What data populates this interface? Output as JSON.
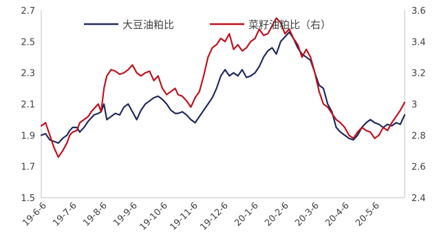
{
  "chart_data": {
    "type": "line",
    "title": "",
    "xlabel": "",
    "ylabel": "",
    "y2label": "",
    "x_tick_labels": [
      "19-6-6",
      "19-7-6",
      "19-8-6",
      "19-9-6",
      "19-10-6",
      "19-11-6",
      "19-12-6",
      "20-1-6",
      "20-2-6",
      "20-3-6",
      "20-4-6",
      "20-5-6"
    ],
    "y_left": {
      "min": 1.5,
      "max": 2.7,
      "ticks": [
        "1.5",
        "1.7",
        "1.9",
        "2.1",
        "2.3",
        "2.5",
        "2.7"
      ]
    },
    "y_right": {
      "min": 2.4,
      "max": 3.6,
      "ticks": [
        "2.4",
        "2.6",
        "2.8",
        "3",
        "3.2",
        "3.4",
        "3.6"
      ]
    },
    "grid": false,
    "legend": "top",
    "series": [
      {
        "name": "大豆油粕比",
        "axis": "left",
        "color": "#1f2a5c",
        "x": [
          0,
          3,
          6,
          9,
          12,
          15,
          18,
          20,
          22,
          25,
          27,
          30,
          33,
          35,
          37,
          40,
          42,
          44,
          46,
          49,
          52,
          55,
          58,
          61,
          64,
          67,
          70,
          73,
          76,
          79,
          82,
          85,
          88,
          91,
          94,
          96,
          99,
          102,
          105,
          108,
          111,
          114,
          117,
          120,
          123,
          126,
          129,
          132,
          135,
          138,
          141,
          144,
          147,
          150,
          153,
          156,
          159,
          162,
          165,
          168,
          171,
          174,
          177,
          180,
          183,
          186,
          189,
          192,
          195,
          198,
          201,
          204,
          207,
          210,
          213,
          216,
          219,
          222,
          225,
          228,
          231,
          234,
          237,
          240,
          243,
          246,
          249,
          252,
          255
        ],
        "y": [
          1.9,
          1.91,
          1.87,
          1.86,
          1.85,
          1.88,
          1.9,
          1.93,
          1.95,
          1.95,
          1.92,
          1.95,
          1.99,
          2.01,
          2.03,
          2.04,
          2.05,
          2.1,
          2.0,
          2.02,
          2.04,
          2.03,
          2.08,
          2.1,
          2.05,
          2.0,
          2.06,
          2.1,
          2.12,
          2.14,
          2.15,
          2.13,
          2.1,
          2.06,
          2.04,
          2.04,
          2.05,
          2.03,
          2.0,
          1.98,
          2.02,
          2.06,
          2.1,
          2.14,
          2.2,
          2.28,
          2.32,
          2.28,
          2.3,
          2.28,
          2.32,
          2.27,
          2.28,
          2.3,
          2.34,
          2.4,
          2.44,
          2.46,
          2.42,
          2.5,
          2.53,
          2.56,
          2.52,
          2.46,
          2.42,
          2.4,
          2.38,
          2.3,
          2.22,
          2.2,
          2.1,
          2.05,
          1.95,
          1.92,
          1.9,
          1.88,
          1.87,
          1.9,
          1.95,
          1.98,
          2.0,
          1.98,
          1.97,
          1.95,
          1.97,
          1.96,
          1.98,
          1.97,
          2.03
        ]
      },
      {
        "name": "菜籽油粕比（右）",
        "axis": "right",
        "color": "#c0101c",
        "x": [
          0,
          3,
          6,
          9,
          12,
          15,
          18,
          20,
          22,
          25,
          27,
          30,
          33,
          35,
          37,
          40,
          42,
          44,
          46,
          49,
          52,
          55,
          58,
          61,
          64,
          67,
          70,
          73,
          76,
          79,
          82,
          85,
          88,
          91,
          94,
          96,
          99,
          102,
          105,
          108,
          111,
          114,
          117,
          120,
          123,
          126,
          129,
          132,
          135,
          138,
          141,
          144,
          147,
          150,
          153,
          156,
          159,
          162,
          165,
          168,
          171,
          174,
          177,
          180,
          183,
          186,
          189,
          192,
          195,
          198,
          201,
          204,
          207,
          210,
          213,
          216,
          219,
          222,
          225,
          228,
          231,
          234,
          237,
          240,
          243,
          246,
          249,
          252,
          255
        ],
        "y": [
          2.86,
          2.88,
          2.8,
          2.72,
          2.66,
          2.7,
          2.75,
          2.8,
          2.82,
          2.83,
          2.88,
          2.9,
          2.92,
          2.95,
          2.97,
          3.0,
          2.95,
          3.1,
          3.18,
          3.22,
          3.21,
          3.19,
          3.2,
          3.22,
          3.25,
          3.2,
          3.18,
          3.2,
          3.21,
          3.15,
          3.18,
          3.1,
          3.06,
          3.08,
          3.1,
          3.06,
          3.05,
          3.02,
          2.98,
          3.04,
          3.08,
          3.18,
          3.3,
          3.36,
          3.38,
          3.42,
          3.4,
          3.45,
          3.35,
          3.38,
          3.34,
          3.36,
          3.4,
          3.42,
          3.48,
          3.44,
          3.45,
          3.5,
          3.55,
          3.52,
          3.45,
          3.48,
          3.42,
          3.38,
          3.3,
          3.35,
          3.3,
          3.2,
          3.08,
          3.0,
          2.98,
          2.94,
          2.9,
          2.88,
          2.85,
          2.8,
          2.78,
          2.82,
          2.85,
          2.83,
          2.82,
          2.78,
          2.8,
          2.85,
          2.83,
          2.88,
          2.92,
          2.96,
          3.01
        ]
      }
    ]
  }
}
